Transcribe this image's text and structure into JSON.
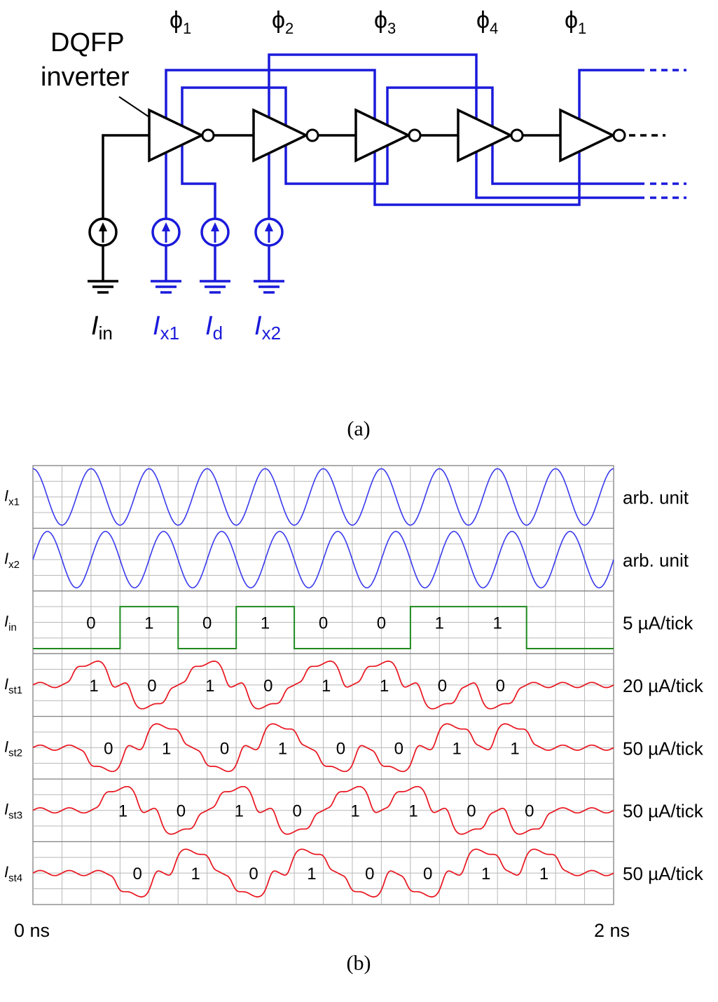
{
  "diagram": {
    "caption": "(a)",
    "inverter_label_line1": "DQFP",
    "inverter_label_line2": "inverter",
    "phases": [
      {
        "sym": "ϕ",
        "sub": "1"
      },
      {
        "sym": "ϕ",
        "sub": "2"
      },
      {
        "sym": "ϕ",
        "sub": "3"
      },
      {
        "sym": "ϕ",
        "sub": "4"
      },
      {
        "sym": "ϕ",
        "sub": "1"
      }
    ],
    "sources": [
      {
        "main": "I",
        "sub": "in",
        "color": "#000000"
      },
      {
        "main": "I",
        "sub": "x1",
        "color": "#1a1adb"
      },
      {
        "main": "I",
        "sub": "d",
        "color": "#1a1adb"
      },
      {
        "main": "I",
        "sub": "x2",
        "color": "#1a1adb"
      }
    ],
    "colors": {
      "wire": "#000000",
      "excitation": "#1a1adb"
    }
  },
  "waveforms": {
    "caption": "(b)",
    "x_start_label": "0 ns",
    "x_end_label": "2 ns",
    "colors": {
      "excitation": "#3a3aee",
      "input": "#1f8a1f",
      "current": "#e8141e"
    },
    "panels": [
      {
        "main": "I",
        "sub": "x1",
        "unit": "arb. unit",
        "kind": "sine",
        "phase_deg": 90,
        "bits": []
      },
      {
        "main": "I",
        "sub": "x2",
        "unit": "arb. unit",
        "kind": "sine",
        "phase_deg": 0,
        "bits": []
      },
      {
        "main": "I",
        "sub": "in",
        "unit": "5 µA/tick",
        "kind": "digital",
        "bits": [
          "0",
          "1",
          "0",
          "1",
          "0",
          "0",
          "1",
          "1"
        ]
      },
      {
        "main": "I",
        "sub": "st1",
        "unit": "20 µA/tick",
        "kind": "current",
        "bits": [
          "1",
          "0",
          "1",
          "0",
          "1",
          "1",
          "0",
          "0"
        ]
      },
      {
        "main": "I",
        "sub": "st2",
        "unit": "50 µA/tick",
        "kind": "current",
        "bits": [
          "0",
          "1",
          "0",
          "1",
          "0",
          "0",
          "1",
          "1"
        ]
      },
      {
        "main": "I",
        "sub": "st3",
        "unit": "50 µA/tick",
        "kind": "current",
        "bits": [
          "1",
          "0",
          "1",
          "0",
          "1",
          "1",
          "0",
          "0"
        ]
      },
      {
        "main": "I",
        "sub": "st4",
        "unit": "50 µA/tick",
        "kind": "current",
        "bits": [
          "0",
          "1",
          "0",
          "1",
          "0",
          "0",
          "1",
          "1"
        ]
      }
    ]
  }
}
